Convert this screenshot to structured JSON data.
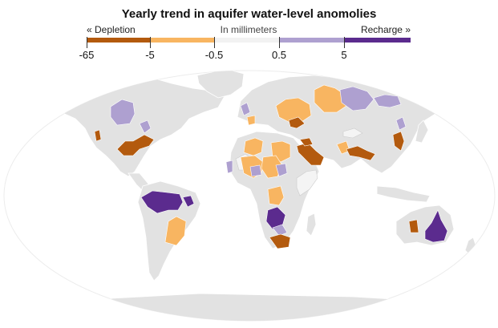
{
  "title": "Yearly trend in aquifer water-level anomolies",
  "legend": {
    "depletion_label": "« Depletion",
    "unit_label": "In millimeters",
    "recharge_label": "Recharge »",
    "bins": [
      {
        "color": "#b35a0e"
      },
      {
        "color": "#f8b561"
      },
      {
        "color": "#f2f2f2"
      },
      {
        "color": "#aea0d0"
      },
      {
        "color": "#5b2b8e"
      }
    ],
    "tick_labels": [
      "-65",
      "-5",
      "-0.5",
      "0.5",
      "5"
    ]
  },
  "colors": {
    "land": "#e2e2e2",
    "ocean": "#ffffff",
    "strong_depletion": "#b35a0e",
    "depletion": "#f8b561",
    "neutral": "#f4f4f4",
    "recharge": "#aea0d0",
    "strong_recharge": "#5b2b8e"
  },
  "regions": [
    {
      "name": "canada-prairies",
      "category": "recharge"
    },
    {
      "name": "great-lakes",
      "category": "recharge"
    },
    {
      "name": "california-central-valley",
      "category": "strong_depletion"
    },
    {
      "name": "us-high-plains-gulf",
      "category": "strong_depletion"
    },
    {
      "name": "amazon-basin",
      "category": "strong_recharge"
    },
    {
      "name": "northeast-brazil",
      "category": "strong_recharge"
    },
    {
      "name": "guarani-south-america",
      "category": "depletion"
    },
    {
      "name": "west-africa-coast",
      "category": "recharge"
    },
    {
      "name": "north-africa-west",
      "category": "depletion"
    },
    {
      "name": "sahara-northwest",
      "category": "neutral"
    },
    {
      "name": "sahara-central",
      "category": "depletion"
    },
    {
      "name": "sahel-niger",
      "category": "recharge"
    },
    {
      "name": "nubian-sandstone",
      "category": "depletion"
    },
    {
      "name": "chad-basin",
      "category": "depletion"
    },
    {
      "name": "sudd-basin",
      "category": "recharge"
    },
    {
      "name": "arabian-aquifer",
      "category": "strong_depletion"
    },
    {
      "name": "iraq-syria-basin",
      "category": "strong_depletion"
    },
    {
      "name": "congo-basin",
      "category": "depletion"
    },
    {
      "name": "horn-of-africa",
      "category": "neutral"
    },
    {
      "name": "zambezi-basin",
      "category": "strong_recharge"
    },
    {
      "name": "kalahari-basin",
      "category": "recharge"
    },
    {
      "name": "karoo-basin",
      "category": "strong_depletion"
    },
    {
      "name": "western-europe-basin",
      "category": "depletion"
    },
    {
      "name": "scandinavia",
      "category": "recharge"
    },
    {
      "name": "russian-platform",
      "category": "depletion"
    },
    {
      "name": "west-siberia",
      "category": "depletion"
    },
    {
      "name": "east-siberia",
      "category": "recharge"
    },
    {
      "name": "far-east-russia",
      "category": "recharge"
    },
    {
      "name": "ukraine-basin",
      "category": "strong_depletion"
    },
    {
      "name": "central-asia",
      "category": "neutral"
    },
    {
      "name": "indus-basin",
      "category": "depletion"
    },
    {
      "name": "ganges-brahmaputra",
      "category": "strong_depletion"
    },
    {
      "name": "north-china-plain",
      "category": "strong_depletion"
    },
    {
      "name": "northeast-china",
      "category": "recharge"
    },
    {
      "name": "great-artesian-basin",
      "category": "strong_recharge"
    },
    {
      "name": "canning-basin",
      "category": "strong_depletion"
    }
  ]
}
